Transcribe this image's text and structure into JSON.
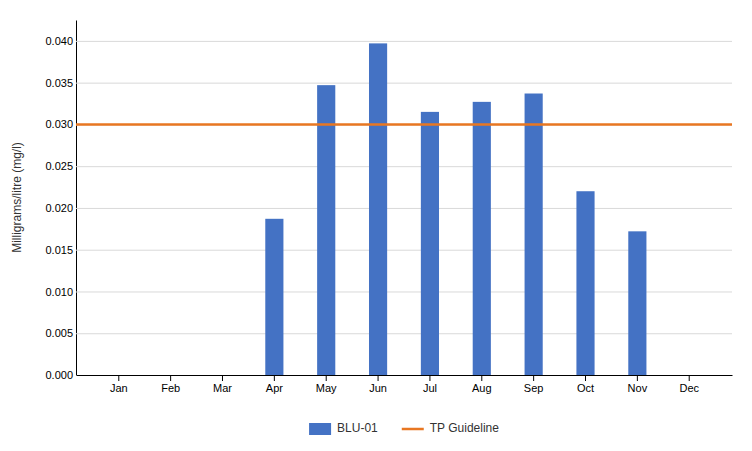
{
  "chart_data": {
    "type": "bar",
    "categories": [
      "Jan",
      "Feb",
      "Mar",
      "Apr",
      "May",
      "Jun",
      "Jul",
      "Aug",
      "Sep",
      "Oct",
      "Nov",
      "Dec"
    ],
    "series": [
      {
        "name": "BLU-01",
        "type": "bar",
        "color": "#4472C4",
        "values": [
          0,
          0,
          0,
          0.0187,
          0.0347,
          0.0397,
          0.0315,
          0.0327,
          0.0337,
          0.022,
          0.0172,
          0
        ]
      }
    ],
    "reference_lines": [
      {
        "name": "TP Guideline",
        "value": 0.03,
        "color": "#E87722"
      }
    ],
    "y_label": "Milligrams/litre (mg/l)",
    "ylim": [
      0,
      0.0425
    ],
    "yticks": [
      {
        "value": 0.0,
        "label": "0.000"
      },
      {
        "value": 0.005,
        "label": "0.005"
      },
      {
        "value": 0.01,
        "label": "0.010"
      },
      {
        "value": 0.015,
        "label": "0.015"
      },
      {
        "value": 0.02,
        "label": "0.020"
      },
      {
        "value": 0.025,
        "label": "0.025"
      },
      {
        "value": 0.03,
        "label": "0.030"
      },
      {
        "value": 0.035,
        "label": "0.035"
      },
      {
        "value": 0.04,
        "label": "0.040"
      }
    ],
    "grid": true,
    "legend": "bottom"
  }
}
